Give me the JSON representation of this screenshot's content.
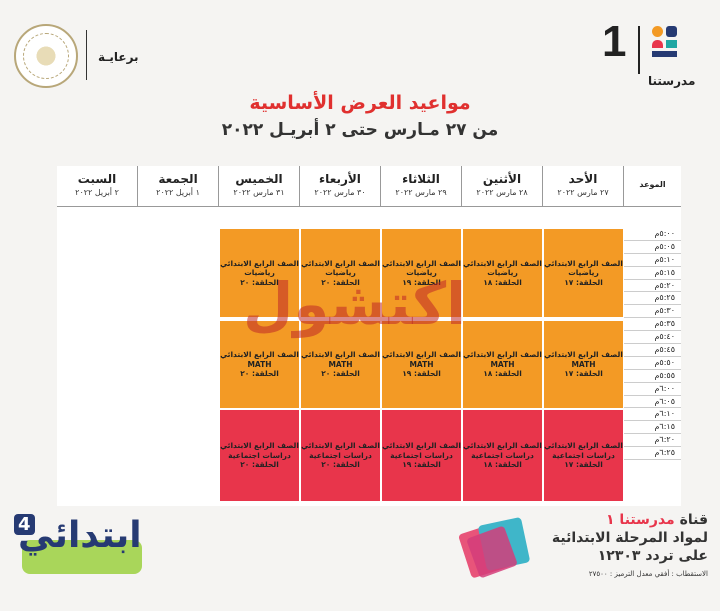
{
  "header": {
    "sponsor_label": "برعايـة",
    "logo_number": "1",
    "logo_text": "مدرستنا",
    "title": "مواعيد العرض الأساسية",
    "subtitle": "من ٢٧ مـارس حتى ٢ أبريـل ٢٠٢٢"
  },
  "table": {
    "time_header": "الموعد",
    "days": [
      {
        "name": "الأحد",
        "date": "٢٧ مارس ٢٠٢٢"
      },
      {
        "name": "الأثنين",
        "date": "٢٨ مارس ٢٠٢٢"
      },
      {
        "name": "الثلاثاء",
        "date": "٢٩ مارس ٢٠٢٢"
      },
      {
        "name": "الأربعاء",
        "date": "٣٠ مارس ٢٠٢٢"
      },
      {
        "name": "الخميس",
        "date": "٣١ مارس ٢٠٢٢"
      },
      {
        "name": "الجمعة",
        "date": "١ أبريل ٢٠٢٢"
      },
      {
        "name": "السبت",
        "date": "٢ أبريل ٢٠٢٢"
      }
    ],
    "times": [
      "٥:٠٠م",
      "٥:٠٥م",
      "٥:١٠م",
      "٥:١٥م",
      "٥:٢٠م",
      "٥:٢٥م",
      "٥:٣٠م",
      "٥:٣٥م",
      "٥:٤٠م",
      "٥:٤٥م",
      "٥:٥٠م",
      "٥:٥٥م",
      "٦:٠٠م",
      "٦:٠٥م",
      "٦:١٠م",
      "٦:١٥م",
      "٦:٢٠م",
      "٦:٢٥م"
    ],
    "rows": [
      {
        "color": "orange",
        "cells": [
          [
            "الصف الرابع الابتدائي",
            "رياضيات",
            "الحلقة: ١٧"
          ],
          [
            "الصف الرابع الابتدائي",
            "رياضيات",
            "الحلقة: ١٨"
          ],
          [
            "الصف الرابع الابتدائي",
            "رياضيات",
            "الحلقة: ١٩"
          ],
          [
            "الصف الرابع الابتدائي",
            "رياضيات",
            "الحلقة: ٢٠"
          ],
          [
            "الصف الرابع الابتدائي",
            "رياضيات",
            "الحلقة: ٢٠"
          ]
        ]
      },
      {
        "color": "orange",
        "cells": [
          [
            "الصف الرابع الابتدائي",
            "MATH",
            "الحلقة: ١٧"
          ],
          [
            "الصف الرابع الابتدائي",
            "MATH",
            "الحلقة: ١٨"
          ],
          [
            "الصف الرابع الابتدائي",
            "MATH",
            "الحلقة: ١٩"
          ],
          [
            "الصف الرابع الابتدائي",
            "MATH",
            "الحلقة: ٢٠"
          ],
          [
            "الصف الرابع الابتدائي",
            "MATH",
            "الحلقة: ٢٠"
          ]
        ]
      },
      {
        "color": "red",
        "cells": [
          [
            "الصف الرابع الابتدائي",
            "دراسات اجتماعية",
            "الحلقة: ١٧"
          ],
          [
            "الصف الرابع الابتدائي",
            "دراسات اجتماعية",
            "الحلقة: ١٨"
          ],
          [
            "الصف الرابع الابتدائي",
            "دراسات اجتماعية",
            "الحلقة: ١٩"
          ],
          [
            "الصف الرابع الابتدائي",
            "دراسات اجتماعية",
            "الحلقة: ٢٠"
          ],
          [
            "الصف الرابع الابتدائي",
            "دراسات اجتماعية",
            "الحلقة: ٢٠"
          ]
        ]
      }
    ]
  },
  "watermark": "اكتشول",
  "footer": {
    "badge_number": "4",
    "badge_text": "ابتدائي",
    "channel_line1_a": "قناة",
    "channel_line1_b": "مدرستنا ١",
    "channel_line2": "لمواد المرحلة الابتدائية",
    "channel_line3": "على تردد ١٢٣٠٣",
    "reception": "الاستقطاب : أفقي معدل الترميز : ٢٧٥٠٠"
  },
  "colors": {
    "orange": "#f39a25",
    "red": "#e8354b",
    "title": "#e0302f",
    "navy": "#263a73"
  }
}
